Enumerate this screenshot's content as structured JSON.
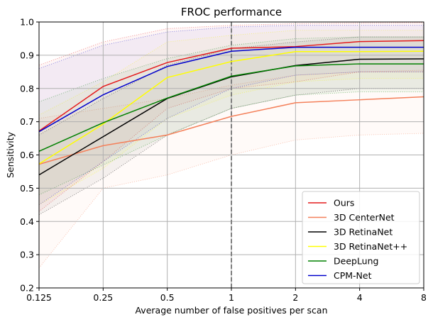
{
  "chart_data": {
    "type": "line",
    "title": "FROC performance",
    "xlabel": "Average number of false positives per scan",
    "ylabel": "Sensitivity",
    "x_scale": "log2",
    "x": [
      0.125,
      0.25,
      0.5,
      1,
      2,
      4,
      8
    ],
    "x_tick_labels": [
      "0.125",
      "0.25",
      "0.5",
      "1",
      "2",
      "4",
      "8"
    ],
    "ylim": [
      0.2,
      1.0
    ],
    "y_ticks": [
      0.2,
      0.3,
      0.4,
      0.5,
      0.6,
      0.7,
      0.8,
      0.9,
      1.0
    ],
    "y_tick_labels": [
      "0.2",
      "0.3",
      "0.4",
      "0.5",
      "0.6",
      "0.7",
      "0.8",
      "0.9",
      "1.0"
    ],
    "grid": true,
    "legend_position": "bottom-right",
    "reference_line_x": 1,
    "series": [
      {
        "name": "Ours",
        "color": "#e41a1c",
        "values": [
          0.672,
          0.806,
          0.878,
          0.921,
          0.926,
          0.941,
          0.944
        ],
        "ci_lower": [
          0.43,
          0.58,
          0.74,
          0.8,
          0.82,
          0.85,
          0.85
        ],
        "ci_upper": [
          0.87,
          0.94,
          0.98,
          0.99,
          0.995,
          0.997,
          0.998
        ]
      },
      {
        "name": "3D CenterNet",
        "color": "#f4805a",
        "values": [
          0.572,
          0.628,
          0.66,
          0.716,
          0.757,
          0.766,
          0.775
        ],
        "ci_lower": [
          0.26,
          0.5,
          0.54,
          0.6,
          0.645,
          0.66,
          0.665
        ],
        "ci_upper": [
          0.71,
          0.74,
          0.77,
          0.81,
          0.84,
          0.85,
          0.855
        ]
      },
      {
        "name": "3D RetinaNet",
        "color": "#000000",
        "values": [
          0.54,
          0.655,
          0.77,
          0.835,
          0.869,
          0.888,
          0.889
        ],
        "ci_lower": [
          0.42,
          0.53,
          0.66,
          0.74,
          0.78,
          0.8,
          0.8
        ],
        "ci_upper": [
          0.66,
          0.77,
          0.87,
          0.92,
          0.94,
          0.955,
          0.955
        ]
      },
      {
        "name": "3D RetinaNet++",
        "color": "#ffff00",
        "values": [
          0.573,
          0.693,
          0.833,
          0.881,
          0.911,
          0.911,
          0.912
        ],
        "ci_lower": [
          0.45,
          0.56,
          0.71,
          0.78,
          0.82,
          0.83,
          0.83
        ],
        "ci_upper": [
          0.72,
          0.82,
          0.94,
          0.96,
          0.975,
          0.975,
          0.975
        ]
      },
      {
        "name": "DeepLung",
        "color": "#008000",
        "values": [
          0.611,
          0.697,
          0.771,
          0.837,
          0.868,
          0.874,
          0.874
        ],
        "ci_lower": [
          0.48,
          0.57,
          0.66,
          0.74,
          0.78,
          0.79,
          0.79
        ],
        "ci_upper": [
          0.76,
          0.83,
          0.89,
          0.93,
          0.95,
          0.955,
          0.955
        ]
      },
      {
        "name": "CPM-Net",
        "color": "#0000cc",
        "values": [
          0.67,
          0.781,
          0.866,
          0.912,
          0.924,
          0.924,
          0.924
        ],
        "ci_lower": [
          0.45,
          0.58,
          0.71,
          0.8,
          0.84,
          0.85,
          0.85
        ],
        "ci_upper": [
          0.86,
          0.93,
          0.97,
          0.985,
          0.99,
          0.99,
          0.99
        ]
      }
    ]
  }
}
